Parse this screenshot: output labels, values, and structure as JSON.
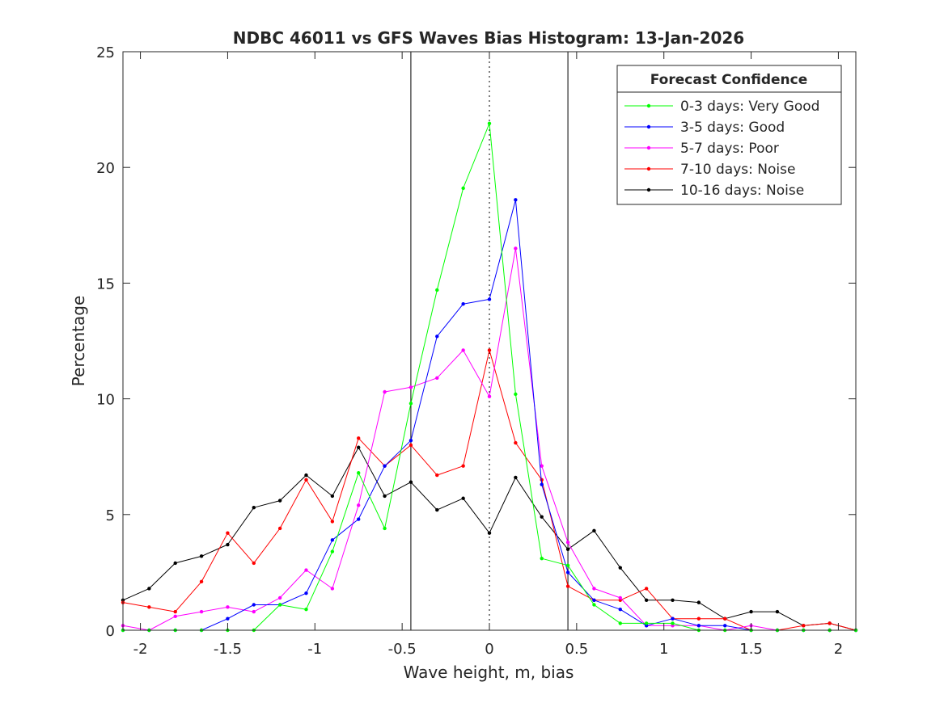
{
  "chart_data": {
    "type": "line",
    "title": "NDBC 46011 vs GFS Waves Bias Histogram: 13-Jan-2026",
    "xlabel": "Wave height, m, bias",
    "ylabel": "Percentage",
    "xlim": [
      -2.1,
      2.1
    ],
    "ylim": [
      0,
      25
    ],
    "xticks": [
      -2,
      -1.5,
      -1,
      -0.5,
      0,
      0.5,
      1,
      1.5,
      2
    ],
    "xtick_labels": [
      "-2",
      "-1.5",
      "-1",
      "-0.5",
      "0",
      "0.5",
      "1",
      "1.5",
      "2"
    ],
    "yticks": [
      0,
      5,
      10,
      15,
      20,
      25
    ],
    "ytick_labels": [
      "0",
      "5",
      "10",
      "15",
      "20",
      "25"
    ],
    "grid": false,
    "vertical_lines": [
      {
        "x": -0.45,
        "style": "solid"
      },
      {
        "x": 0,
        "style": "dotted"
      },
      {
        "x": 0.45,
        "style": "solid"
      }
    ],
    "x": [
      -2.1,
      -1.95,
      -1.8,
      -1.65,
      -1.5,
      -1.35,
      -1.2,
      -1.05,
      -0.9,
      -0.75,
      -0.6,
      -0.45,
      -0.3,
      -0.15,
      0,
      0.15,
      0.3,
      0.45,
      0.6,
      0.75,
      0.9,
      1.05,
      1.2,
      1.35,
      1.5,
      1.65,
      1.8,
      1.95,
      2.1
    ],
    "legend": {
      "title": "Forecast Confidence",
      "location": "top-right"
    },
    "series": [
      {
        "name": "0-3 days: Very Good",
        "color": "#00ff00",
        "values": [
          0,
          0,
          0,
          0,
          0,
          0,
          1.1,
          0.9,
          3.4,
          6.8,
          4.4,
          9.8,
          14.7,
          19.1,
          21.9,
          10.2,
          3.1,
          2.8,
          1.1,
          0.3,
          0.3,
          0.3,
          0,
          0,
          0,
          0,
          0,
          0,
          0
        ]
      },
      {
        "name": "3-5 days: Good",
        "color": "#0000ff",
        "values": [
          0,
          0,
          0,
          0,
          0.5,
          1.1,
          1.1,
          1.6,
          3.9,
          4.8,
          7.1,
          8.2,
          12.7,
          14.1,
          14.3,
          18.6,
          6.3,
          2.5,
          1.3,
          0.9,
          0.2,
          0.5,
          0.2,
          0.2,
          0,
          0,
          0,
          0,
          0
        ]
      },
      {
        "name": "5-7 days: Poor",
        "color": "#ff00ff",
        "values": [
          0.2,
          0,
          0.6,
          0.8,
          1.0,
          0.8,
          1.4,
          2.6,
          1.8,
          5.4,
          10.3,
          10.5,
          10.9,
          12.1,
          10.1,
          16.5,
          7.1,
          3.8,
          1.8,
          1.4,
          0.2,
          0.2,
          0.2,
          0,
          0.2,
          0,
          0,
          0,
          0
        ]
      },
      {
        "name": "7-10 days: Noise",
        "color": "#ff0000",
        "values": [
          1.2,
          1.0,
          0.8,
          2.1,
          4.2,
          2.9,
          4.4,
          6.5,
          4.7,
          8.3,
          7.1,
          8.0,
          6.7,
          7.1,
          12.1,
          8.1,
          6.5,
          1.9,
          1.3,
          1.3,
          1.8,
          0.5,
          0.5,
          0.5,
          0,
          0,
          0.2,
          0.3,
          0
        ]
      },
      {
        "name": "10-16 days: Noise",
        "color": "#000000",
        "values": [
          1.3,
          1.8,
          2.9,
          3.2,
          3.7,
          5.3,
          5.6,
          6.7,
          5.8,
          7.9,
          5.8,
          6.4,
          5.2,
          5.7,
          4.2,
          6.6,
          4.9,
          3.5,
          4.3,
          2.7,
          1.3,
          1.3,
          1.2,
          0.5,
          0.8,
          0.8,
          0.2,
          0.3,
          0
        ]
      }
    ]
  }
}
